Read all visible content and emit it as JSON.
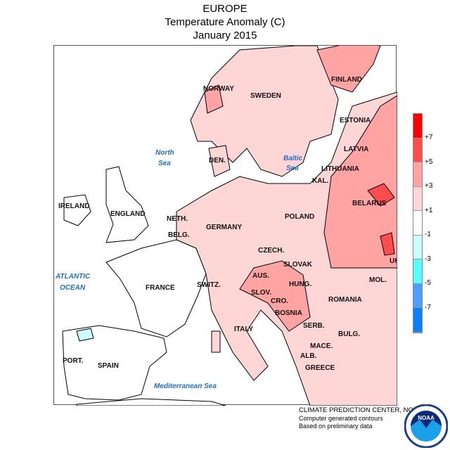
{
  "header": {
    "region": "EUROPE",
    "variable": "Temperature Anomaly (C)",
    "period": "January 2015"
  },
  "legend": {
    "ticks": [
      "+7",
      "+5",
      "+3",
      "+1",
      "-1",
      "-3",
      "-5",
      "-7"
    ],
    "colors": [
      "#ff0000",
      "#ff4d4d",
      "#ffa3a3",
      "#ffd6d6",
      "#ffffff",
      "#ccffff",
      "#55ffff",
      "#4d9fff",
      "#0a80ff"
    ]
  },
  "labels": {
    "countries": [
      "NORWAY",
      "SWEDEN",
      "FINLAND",
      "ESTONIA",
      "LATVIA",
      "DEN.",
      "LITHUANIA",
      "KAL.",
      "IRELAND",
      "ENGLAND",
      "BELARUS",
      "NETH.",
      "POLAND",
      "GERMANY",
      "BELG.",
      "CZECH.",
      "SLOVAK",
      "UK",
      "HUNG.",
      "AUS.",
      "MOL.",
      "FRANCE",
      "SWITZ.",
      "SLOV.",
      "CRO.",
      "ROMANIA",
      "BOSNIA",
      "SERB.",
      "BULG.",
      "ITALY",
      "MACE.",
      "ALB.",
      "PORT.",
      "SPAIN",
      "GREECE"
    ],
    "seas": {
      "north_1": "North",
      "north_2": "Sea",
      "baltic_1": "Baltic",
      "baltic_2": "Sea",
      "atlantic_1": "ATLANTIC",
      "atlantic_2": "OCEAN",
      "med": "Mediterranean Sea"
    }
  },
  "footer": {
    "line1": "CLIMATE PREDICTION CENTER, NOAA",
    "line2": "Computer generated contours",
    "line3": "Based on preliminary data",
    "logo_text": "NOAA"
  }
}
